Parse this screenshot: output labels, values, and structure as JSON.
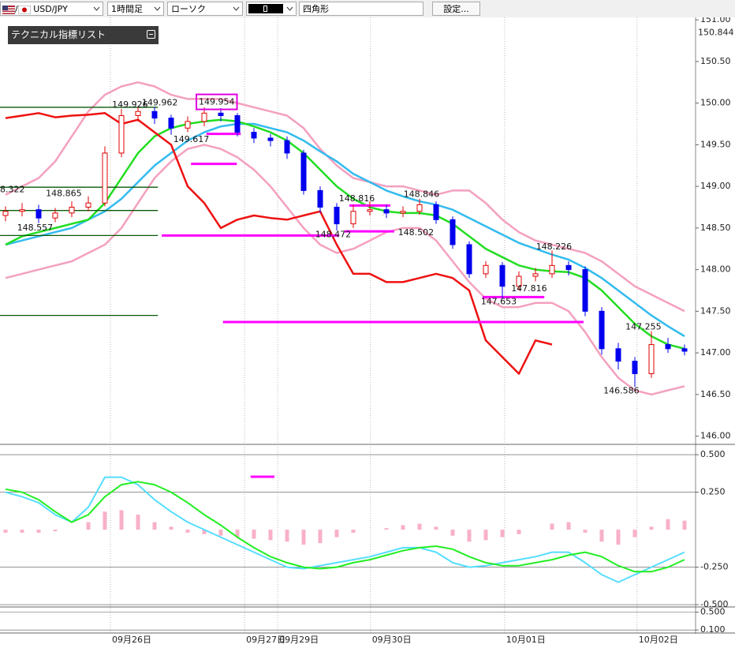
{
  "toolbar": {
    "separator": "/",
    "symbol": "USD/JPY",
    "timeframe": "1時間足",
    "chart_style": "ローソク",
    "drawing_tool": "四角形",
    "settings": "設定...",
    "indicator_panel": "テクニカル指標リスト"
  },
  "chart_data": [
    {
      "type": "candlestick",
      "x": [
        1,
        4,
        7,
        10,
        13,
        16,
        19,
        22,
        25,
        28,
        31,
        34,
        37,
        40,
        43,
        46,
        49,
        52,
        55,
        58,
        61,
        64,
        67,
        70,
        73,
        76,
        79,
        82,
        85,
        88,
        91,
        94,
        97,
        100,
        103,
        106,
        109,
        112,
        115,
        118,
        121,
        124
      ],
      "open": [
        148.65,
        148.7,
        148.72,
        148.62,
        148.68,
        148.75,
        148.8,
        149.4,
        149.85,
        149.9,
        149.82,
        149.7,
        149.78,
        149.88,
        149.85,
        149.65,
        149.58,
        149.55,
        149.4,
        148.95,
        148.75,
        148.55,
        148.7,
        148.72,
        148.68,
        148.7,
        148.78,
        148.6,
        148.3,
        147.95,
        148.05,
        147.8,
        147.92,
        147.95,
        148.05,
        148.0,
        147.5,
        147.05,
        146.9,
        146.75,
        147.1,
        147.05
      ],
      "high": [
        148.76,
        148.8,
        148.78,
        148.74,
        148.82,
        148.88,
        149.48,
        149.93,
        149.96,
        149.95,
        149.86,
        149.84,
        149.95,
        149.94,
        149.88,
        149.7,
        149.63,
        149.6,
        149.44,
        149.0,
        148.8,
        148.78,
        148.82,
        148.78,
        148.76,
        148.85,
        148.82,
        148.64,
        148.34,
        148.1,
        148.09,
        147.98,
        148.02,
        148.23,
        148.1,
        148.04,
        147.55,
        147.12,
        146.95,
        147.26,
        147.18,
        147.1
      ],
      "low": [
        148.58,
        148.64,
        148.56,
        148.57,
        148.63,
        148.7,
        148.76,
        149.35,
        149.78,
        149.75,
        149.62,
        149.65,
        149.72,
        149.78,
        149.6,
        149.52,
        149.48,
        149.33,
        148.9,
        148.68,
        148.47,
        148.5,
        148.65,
        148.62,
        148.63,
        148.66,
        148.55,
        148.25,
        147.9,
        147.9,
        147.65,
        147.75,
        147.86,
        147.9,
        147.93,
        147.44,
        146.98,
        146.8,
        146.59,
        146.7,
        147.0,
        146.97
      ],
      "close": [
        148.7,
        148.72,
        148.62,
        148.68,
        148.75,
        148.8,
        149.4,
        149.85,
        149.9,
        149.82,
        149.7,
        149.78,
        149.88,
        149.85,
        149.65,
        149.58,
        149.55,
        149.4,
        148.95,
        148.75,
        148.55,
        148.7,
        148.72,
        148.68,
        148.7,
        148.78,
        148.6,
        148.3,
        147.95,
        148.05,
        147.8,
        147.92,
        147.95,
        148.05,
        148.0,
        147.5,
        147.05,
        146.9,
        146.75,
        147.1,
        147.05,
        147.02
      ],
      "up_color": "#e00000",
      "down_color": "#0000ee",
      "series": [
        {
          "color": "#f4a0c0",
          "values": [
            148.9,
            149.0,
            149.1,
            149.3,
            149.6,
            149.9,
            150.1,
            150.2,
            150.25,
            150.2,
            150.1,
            150.05,
            150.05,
            150.05,
            150.0,
            149.95,
            149.9,
            149.85,
            149.7,
            149.45,
            149.25,
            149.1,
            149.05,
            149.0,
            149.0,
            148.95,
            148.9,
            148.95,
            148.95,
            148.8,
            148.6,
            148.45,
            148.35,
            148.3,
            148.25,
            148.2,
            148.1,
            147.95,
            147.8,
            147.7,
            147.6,
            147.5
          ]
        },
        {
          "color": "#f4a0c0",
          "values": [
            147.9,
            147.95,
            148.0,
            148.05,
            148.1,
            148.2,
            148.3,
            148.5,
            148.8,
            149.1,
            149.3,
            149.45,
            149.5,
            149.45,
            149.35,
            149.2,
            149.0,
            148.75,
            148.5,
            148.3,
            148.2,
            148.25,
            148.35,
            148.45,
            148.5,
            148.5,
            148.35,
            148.1,
            147.85,
            147.65,
            147.55,
            147.55,
            147.6,
            147.6,
            147.5,
            147.25,
            146.95,
            146.7,
            146.55,
            146.5,
            146.55,
            146.6
          ]
        },
        {
          "color": "#33bbee",
          "values": [
            148.3,
            148.35,
            148.4,
            148.45,
            148.5,
            148.6,
            148.7,
            148.85,
            149.05,
            149.25,
            149.4,
            149.55,
            149.65,
            149.72,
            149.75,
            149.75,
            149.7,
            149.65,
            149.55,
            149.42,
            149.3,
            149.15,
            149.05,
            148.95,
            148.88,
            148.82,
            148.78,
            148.72,
            148.62,
            148.52,
            148.42,
            148.32,
            148.25,
            148.18,
            148.12,
            148.02,
            147.9,
            147.75,
            147.6,
            147.45,
            147.32,
            147.2
          ]
        },
        {
          "color": "#22dd22",
          "values": [
            148.3,
            148.4,
            148.45,
            148.5,
            148.55,
            148.6,
            148.8,
            149.1,
            149.4,
            149.6,
            149.7,
            149.75,
            149.78,
            149.8,
            149.78,
            149.72,
            149.65,
            149.55,
            149.4,
            149.2,
            149.0,
            148.85,
            148.75,
            148.7,
            148.68,
            148.68,
            148.65,
            148.55,
            148.4,
            148.25,
            148.15,
            148.05,
            148.0,
            147.98,
            147.97,
            147.9,
            147.75,
            147.55,
            147.35,
            147.2,
            147.1,
            147.05
          ]
        },
        {
          "color": "#ee1111",
          "values": [
            149.82,
            149.85,
            149.88,
            149.83,
            149.85,
            149.86,
            149.88,
            149.75,
            149.8,
            149.65,
            149.5,
            149.0,
            148.8,
            148.5,
            148.6,
            148.65,
            148.62,
            148.6,
            148.65,
            148.7,
            148.3,
            147.95,
            147.95,
            147.85,
            147.85,
            147.9,
            147.95,
            147.9,
            147.75,
            147.15,
            146.95,
            146.75,
            147.15,
            147.1,
            null,
            null,
            null,
            null,
            null,
            null,
            null,
            null
          ]
        }
      ],
      "hlines": [
        {
          "y": 149.95,
          "x1": 0,
          "x2": 28.6,
          "color": "#0a5a0a"
        },
        {
          "y": 148.99,
          "x1": 0,
          "x2": 28.6,
          "color": "#0a5a0a"
        },
        {
          "y": 148.71,
          "x1": 0,
          "x2": 28.6,
          "color": "#0a5a0a"
        },
        {
          "y": 148.41,
          "x1": 0,
          "x2": 28.6,
          "color": "#0a5a0a"
        },
        {
          "y": 147.45,
          "x1": 0,
          "x2": 28.6,
          "color": "#0a5a0a"
        },
        {
          "y": 148.41,
          "x1": 29.3,
          "x2": 61.4,
          "color": "#ff00ff"
        },
        {
          "y": 147.37,
          "x1": 40.4,
          "x2": 105.7,
          "color": "#ff00ff"
        },
        {
          "y": 149.27,
          "x1": 34.6,
          "x2": 42.9,
          "color": "#ff00ff"
        },
        {
          "y": 149.63,
          "x1": 37.4,
          "x2": 43.6,
          "color": "#ff00ff"
        },
        {
          "y": 148.77,
          "x1": 63.3,
          "x2": 70.7,
          "color": "#ff00ff"
        },
        {
          "y": 148.46,
          "x1": 62.4,
          "x2": 71.4,
          "color": "#ff00ff"
        },
        {
          "y": 147.67,
          "x1": 87.4,
          "x2": 98.6,
          "color": "#ff00ff"
        }
      ],
      "annotations": [
        {
          "text": "149.926",
          "x": 20.3,
          "y": 149.98
        },
        {
          "text": "149.962",
          "x": 25.7,
          "y": 150.0
        },
        {
          "text": "149.954",
          "x": 36,
          "y": 150.01,
          "boxed": true
        },
        {
          "text": "149.617",
          "x": 31.4,
          "y": 149.56
        },
        {
          "text": "148.865",
          "x": 8.3,
          "y": 148.91
        },
        {
          "text": "148.557",
          "x": 3.1,
          "y": 148.5
        },
        {
          "text": "8.322",
          "x": 0,
          "y": 148.96
        },
        {
          "text": "148.816",
          "x": 61.4,
          "y": 148.85
        },
        {
          "text": "148.846",
          "x": 73.1,
          "y": 148.9
        },
        {
          "text": "148.502",
          "x": 72.1,
          "y": 148.44
        },
        {
          "text": "148.472",
          "x": 57.1,
          "y": 148.42
        },
        {
          "text": "148.226",
          "x": 97.1,
          "y": 148.27
        },
        {
          "text": "147.816",
          "x": 92.6,
          "y": 147.77
        },
        {
          "text": "147.653",
          "x": 87.1,
          "y": 147.61
        },
        {
          "text": "147.255",
          "x": 113.3,
          "y": 147.31
        },
        {
          "text": "146.586",
          "x": 109.3,
          "y": 146.54
        }
      ],
      "price_marker": 150.844,
      "xlim": [
        0,
        126
      ],
      "ylim": [
        145.92,
        151.03
      ],
      "xticks": [
        {
          "value": 20,
          "label": "09月26日"
        },
        {
          "value": 44.3,
          "label": "09月27日"
        },
        {
          "value": 50.3,
          "label": "09月29日"
        },
        {
          "value": 67.1,
          "label": "09月30日"
        },
        {
          "value": 91.4,
          "label": "10月01日"
        },
        {
          "value": 115.4,
          "label": "10月02日"
        }
      ],
      "yticks": [
        {
          "value": 146,
          "label": "146.00"
        },
        {
          "value": 146.5,
          "label": "146.50"
        },
        {
          "value": 147,
          "label": "147.00"
        },
        {
          "value": 147.5,
          "label": "147.50"
        },
        {
          "value": 148,
          "label": "148.00"
        },
        {
          "value": 148.5,
          "label": "148.50"
        },
        {
          "value": 149,
          "label": "149.00"
        },
        {
          "value": 149.5,
          "label": "149.50"
        },
        {
          "value": 150,
          "label": "150.00"
        },
        {
          "value": 150.5,
          "label": "150.50"
        },
        {
          "value": 151,
          "label": "151.00"
        }
      ]
    },
    {
      "type": "macd",
      "x": [
        1,
        4,
        7,
        10,
        13,
        16,
        19,
        22,
        25,
        28,
        31,
        34,
        37,
        40,
        43,
        46,
        49,
        52,
        55,
        58,
        61,
        64,
        67,
        70,
        73,
        76,
        79,
        82,
        85,
        88,
        91,
        94,
        97,
        100,
        103,
        106,
        109,
        112,
        115,
        118,
        121,
        124
      ],
      "bars": [
        -0.02,
        -0.02,
        -0.02,
        -0.01,
        0.0,
        0.05,
        0.12,
        0.13,
        0.1,
        0.05,
        0.02,
        -0.02,
        -0.03,
        -0.04,
        -0.05,
        -0.06,
        -0.07,
        -0.08,
        -0.1,
        -0.09,
        -0.05,
        -0.02,
        0.0,
        0.01,
        0.03,
        0.04,
        0.02,
        -0.04,
        -0.08,
        -0.07,
        -0.05,
        -0.03,
        0.0,
        0.04,
        0.05,
        -0.02,
        -0.08,
        -0.1,
        -0.05,
        0.02,
        0.07,
        0.06
      ],
      "bar_color": "#f8b0c8",
      "series": [
        {
          "color": "#55ddff",
          "values": [
            0.25,
            0.22,
            0.18,
            0.1,
            0.05,
            0.15,
            0.35,
            0.35,
            0.3,
            0.2,
            0.12,
            0.05,
            0.0,
            -0.05,
            -0.1,
            -0.15,
            -0.2,
            -0.25,
            -0.26,
            -0.24,
            -0.22,
            -0.2,
            -0.18,
            -0.15,
            -0.12,
            -0.12,
            -0.15,
            -0.22,
            -0.25,
            -0.24,
            -0.22,
            -0.2,
            -0.18,
            -0.15,
            -0.15,
            -0.22,
            -0.3,
            -0.35,
            -0.3,
            -0.25,
            -0.2,
            -0.15
          ]
        },
        {
          "color": "#22ee22",
          "values": [
            0.27,
            0.25,
            0.2,
            0.12,
            0.05,
            0.1,
            0.22,
            0.3,
            0.32,
            0.3,
            0.25,
            0.18,
            0.1,
            0.03,
            -0.05,
            -0.12,
            -0.18,
            -0.22,
            -0.25,
            -0.26,
            -0.25,
            -0.22,
            -0.2,
            -0.17,
            -0.14,
            -0.12,
            -0.11,
            -0.13,
            -0.18,
            -0.22,
            -0.24,
            -0.24,
            -0.22,
            -0.2,
            -0.17,
            -0.15,
            -0.18,
            -0.24,
            -0.28,
            -0.28,
            -0.25,
            -0.2
          ]
        }
      ],
      "hlines": [
        {
          "y": 0.353,
          "x1": 45.4,
          "x2": 49.7,
          "color": "#ff00ff"
        }
      ],
      "xlim": [
        0,
        126
      ],
      "ylim": [
        -0.51,
        0.553
      ],
      "yticks": [
        {
          "value": -0.5,
          "label": "-0.500"
        },
        {
          "value": -0.25,
          "label": "-0.250"
        },
        {
          "value": 0.25,
          "label": "0.250"
        },
        {
          "value": 0.5,
          "label": "0.500"
        }
      ]
    },
    {
      "type": "line",
      "xlim": [
        0,
        126
      ],
      "ylim": [
        0.05,
        0.6
      ],
      "yticks": [
        {
          "value": 0.1,
          "label": "0.100"
        },
        {
          "value": 0.5,
          "label": "0.500"
        }
      ]
    }
  ]
}
